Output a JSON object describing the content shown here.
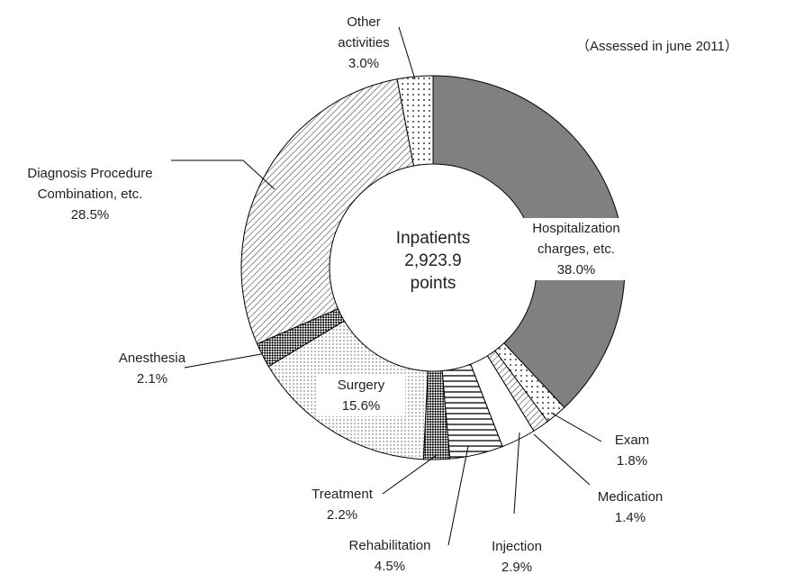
{
  "chart_data": {
    "type": "donut",
    "subtitle": "（Assessed in june 2011）",
    "center_lines": [
      "Inpatients",
      "2,923.9",
      "points"
    ],
    "categories": [
      "Hospitalization charges, etc.",
      "Exam",
      "Medication",
      "Injection",
      "Rehabilitation",
      "Treatment",
      "Surgery",
      "Anesthesia",
      "Diagnosis Procedure Combination, etc.",
      "Other activities"
    ],
    "values": [
      38.0,
      1.8,
      1.4,
      2.9,
      4.5,
      2.2,
      15.6,
      2.1,
      28.5,
      3.0
    ],
    "value_labels": [
      "38.0%",
      "1.8%",
      "1.4%",
      "2.9%",
      "4.5%",
      "2.2%",
      "15.6%",
      "2.1%",
      "28.5%",
      "3.0%"
    ],
    "patterns": [
      "solid",
      "dots",
      "hatch",
      "none",
      "hlines",
      "checks",
      "fine-dots",
      "checks",
      "hatch",
      "dots"
    ],
    "colors": [
      "#808080",
      "#000000",
      "#000000",
      "#ffffff",
      "#000000",
      "#000000",
      "#000000",
      "#000000",
      "#000000",
      "#000000"
    ]
  }
}
